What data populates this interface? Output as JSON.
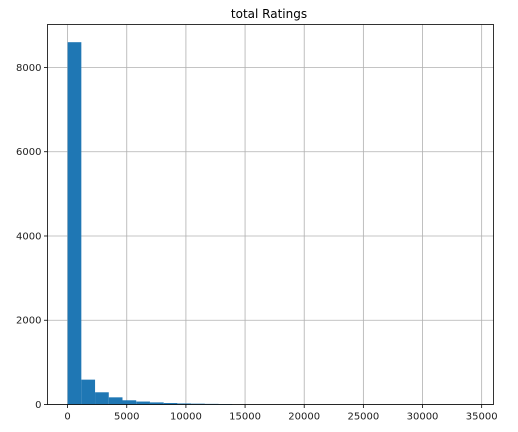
{
  "chart_data": {
    "type": "bar",
    "title": "total Ratings",
    "xlabel": "",
    "ylabel": "",
    "grid": true,
    "bar_color": "#1f77b4",
    "grid_color": "#b0b0b0",
    "xlim": [
      -1700,
      36000
    ],
    "ylim": [
      0,
      9020
    ],
    "bins": {
      "start": 0,
      "width": 1160,
      "values": [
        8600,
        590,
        290,
        170,
        100,
        70,
        50,
        35,
        25,
        20,
        15,
        12
      ]
    },
    "xticks": [
      0,
      5000,
      10000,
      15000,
      20000,
      25000,
      30000,
      35000
    ],
    "xtick_labels": [
      "0",
      "5000",
      "10000",
      "15000",
      "20000",
      "25000",
      "30000",
      "35000"
    ],
    "yticks": [
      0,
      2000,
      4000,
      6000,
      8000
    ],
    "ytick_labels": [
      "0",
      "2000",
      "4000",
      "6000",
      "8000"
    ]
  }
}
